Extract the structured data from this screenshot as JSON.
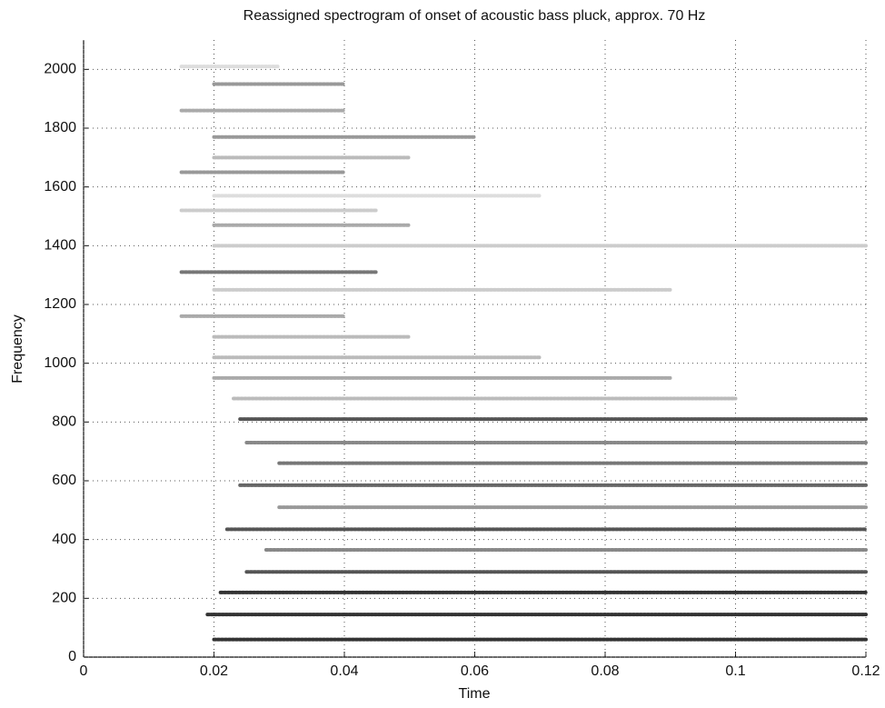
{
  "chart_data": {
    "type": "line",
    "title": "Reassigned spectrogram of onset of acoustic bass pluck, approx. 70 Hz",
    "x_label": "Time",
    "y_label": "Frequency",
    "xlim": [
      0,
      0.12
    ],
    "xticks": [
      0,
      0.02,
      0.04,
      0.06,
      0.08,
      0.1,
      0.12
    ],
    "ylim": [
      0,
      2100
    ],
    "yticks": [
      0,
      200,
      400,
      600,
      800,
      1000,
      1200,
      1400,
      1600,
      1800,
      2000
    ],
    "grid": true,
    "series": [
      {
        "color": "#333333",
        "x": [
          0.02,
          0.12
        ],
        "values": [
          60,
          60
        ]
      },
      {
        "color": "#333333",
        "x": [
          0.019,
          0.12
        ],
        "values": [
          145,
          145
        ]
      },
      {
        "color": "#333333",
        "x": [
          0.021,
          0.12
        ],
        "values": [
          220,
          220
        ]
      },
      {
        "color": "#555555",
        "x": [
          0.025,
          0.12
        ],
        "values": [
          290,
          290
        ]
      },
      {
        "color": "#888888",
        "x": [
          0.028,
          0.12
        ],
        "values": [
          365,
          365
        ]
      },
      {
        "color": "#555555",
        "x": [
          0.022,
          0.12
        ],
        "values": [
          435,
          435
        ]
      },
      {
        "color": "#999999",
        "x": [
          0.03,
          0.12
        ],
        "values": [
          510,
          510
        ]
      },
      {
        "color": "#666666",
        "x": [
          0.024,
          0.12
        ],
        "values": [
          585,
          585
        ]
      },
      {
        "color": "#777777",
        "x": [
          0.03,
          0.12
        ],
        "values": [
          660,
          660
        ]
      },
      {
        "color": "#888888",
        "x": [
          0.025,
          0.12
        ],
        "values": [
          730,
          730
        ]
      },
      {
        "color": "#555555",
        "x": [
          0.024,
          0.12
        ],
        "values": [
          810,
          810
        ]
      },
      {
        "color": "#bbbbbb",
        "x": [
          0.023,
          0.1
        ],
        "values": [
          880,
          880
        ]
      },
      {
        "color": "#aaaaaa",
        "x": [
          0.02,
          0.09
        ],
        "values": [
          950,
          950
        ]
      },
      {
        "color": "#bbbbbb",
        "x": [
          0.02,
          0.07
        ],
        "values": [
          1020,
          1020
        ]
      },
      {
        "color": "#bbbbbb",
        "x": [
          0.02,
          0.05
        ],
        "values": [
          1090,
          1090
        ]
      },
      {
        "color": "#aaaaaa",
        "x": [
          0.015,
          0.04
        ],
        "values": [
          1160,
          1160
        ]
      },
      {
        "color": "#cccccc",
        "x": [
          0.02,
          0.09
        ],
        "values": [
          1250,
          1250
        ]
      },
      {
        "color": "#777777",
        "x": [
          0.015,
          0.045
        ],
        "values": [
          1310,
          1310
        ]
      },
      {
        "color": "#cccccc",
        "x": [
          0.02,
          0.12
        ],
        "values": [
          1400,
          1400
        ]
      },
      {
        "color": "#aaaaaa",
        "x": [
          0.02,
          0.05
        ],
        "values": [
          1470,
          1470
        ]
      },
      {
        "color": "#cccccc",
        "x": [
          0.015,
          0.045
        ],
        "values": [
          1520,
          1520
        ]
      },
      {
        "color": "#dddddd",
        "x": [
          0.02,
          0.07
        ],
        "values": [
          1570,
          1570
        ]
      },
      {
        "color": "#999999",
        "x": [
          0.015,
          0.04
        ],
        "values": [
          1650,
          1650
        ]
      },
      {
        "color": "#bbbbbb",
        "x": [
          0.02,
          0.05
        ],
        "values": [
          1700,
          1700
        ]
      },
      {
        "color": "#999999",
        "x": [
          0.02,
          0.06
        ],
        "values": [
          1770,
          1770
        ]
      },
      {
        "color": "#aaaaaa",
        "x": [
          0.015,
          0.04
        ],
        "values": [
          1860,
          1860
        ]
      },
      {
        "color": "#999999",
        "x": [
          0.02,
          0.04
        ],
        "values": [
          1950,
          1950
        ]
      },
      {
        "color": "#dddddd",
        "x": [
          0.015,
          0.03
        ],
        "values": [
          2010,
          2010
        ]
      }
    ]
  }
}
